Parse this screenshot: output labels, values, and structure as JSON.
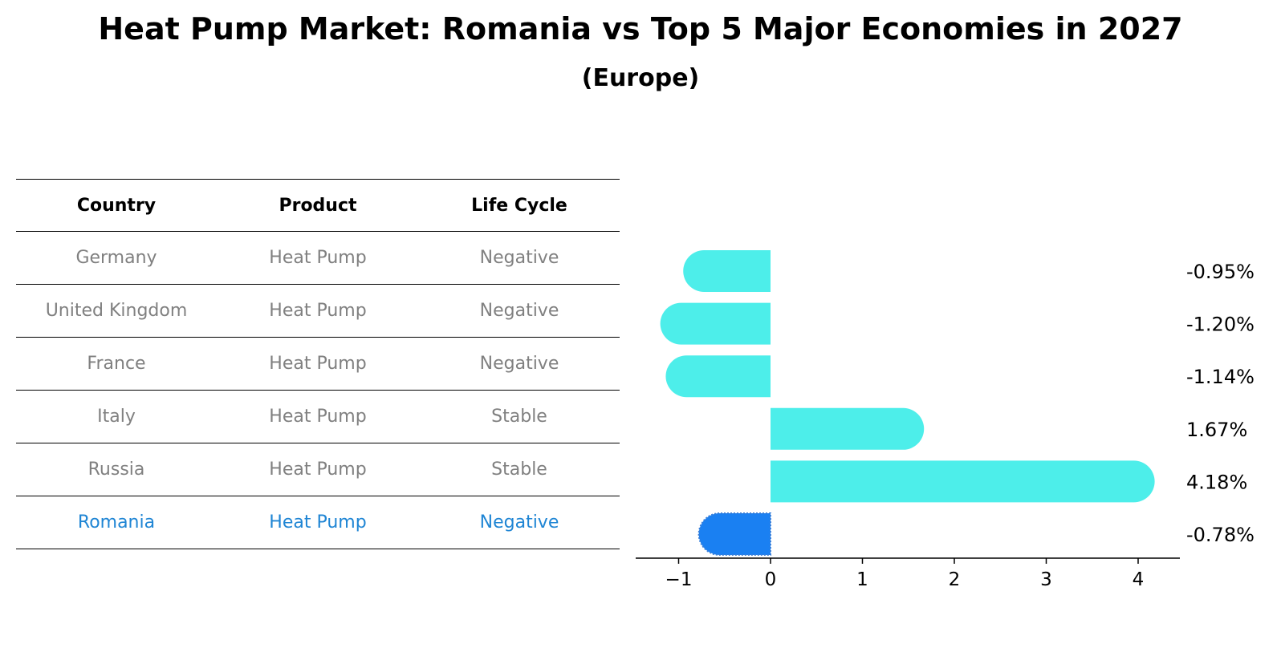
{
  "title": "Heat Pump Market: Romania vs Top 5 Major Economies in 2027",
  "subtitle": "(Europe)",
  "table": {
    "headers": [
      "Country",
      "Product",
      "Life Cycle"
    ],
    "rows": [
      {
        "country": "Germany",
        "product": "Heat Pump",
        "life_cycle": "Negative"
      },
      {
        "country": "United Kingdom",
        "product": "Heat Pump",
        "life_cycle": "Negative"
      },
      {
        "country": "France",
        "product": "Heat Pump",
        "life_cycle": "Negative"
      },
      {
        "country": "Italy",
        "product": "Heat Pump",
        "life_cycle": "Stable"
      },
      {
        "country": "Russia",
        "product": "Heat Pump",
        "life_cycle": "Stable"
      },
      {
        "country": "Romania",
        "product": "Heat Pump",
        "life_cycle": "Negative"
      }
    ],
    "highlighted_row": "Romania"
  },
  "chart_data": {
    "type": "bar",
    "orientation": "horizontal",
    "categories": [
      "Germany",
      "United Kingdom",
      "France",
      "Italy",
      "Russia",
      "Romania"
    ],
    "values": [
      -0.95,
      -1.2,
      -1.14,
      1.67,
      4.18,
      -0.78
    ],
    "value_labels": [
      "-0.95%",
      "-1.20%",
      "-1.14%",
      "1.67%",
      "4.18%",
      "-0.78%"
    ],
    "x_ticks": [
      -1,
      0,
      1,
      2,
      3,
      4
    ],
    "x_tick_labels": [
      "−1",
      "0",
      "1",
      "2",
      "3",
      "4"
    ],
    "xlim": [
      -1.47,
      4.46
    ],
    "grid": false,
    "colors": {
      "default": "#4deeea",
      "highlight": "#1a80f2"
    },
    "highlight_category": "Romania"
  }
}
